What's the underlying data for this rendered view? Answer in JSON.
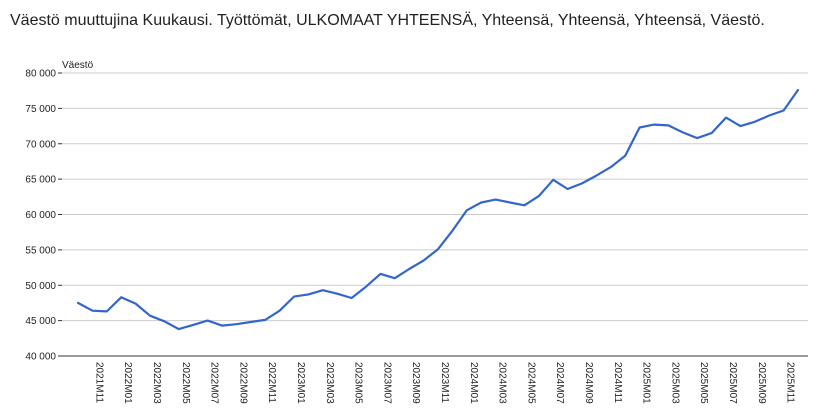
{
  "chart_data": {
    "type": "line",
    "title": "Väestö muuttujina Kuukausi. Työttömät, ULKOMAAT YHTEENSÄ, Yhteensä, Yhteensä, Yhteensä, Väestö.",
    "ylabel": "Väestö",
    "xlabel": "",
    "ylim": [
      40000,
      80000
    ],
    "y_ticks": [
      40000,
      45000,
      50000,
      55000,
      60000,
      65000,
      70000,
      75000,
      80000
    ],
    "y_tick_labels": [
      "40 000",
      "45 000",
      "50 000",
      "55 000",
      "60 000",
      "65 000",
      "70 000",
      "75 000",
      "80 000"
    ],
    "x_tick_labels": [
      "2021M11",
      "2022M01",
      "2022M03",
      "2022M05",
      "2022M07",
      "2022M09",
      "2022M11",
      "2023M01",
      "2023M03",
      "2023M05",
      "2023M07",
      "2023M09",
      "2023M11",
      "2024M01",
      "2024M03",
      "2024M05",
      "2024M07",
      "2024M09",
      "2024M11",
      "2025M01",
      "2025M03",
      "2025M05",
      "2025M07",
      "2025M09",
      "2025M11"
    ],
    "grid": true,
    "legend": "none",
    "line_color": "#3366cc",
    "categories": [
      "2021M10",
      "2021M11",
      "2021M12",
      "2022M01",
      "2022M02",
      "2022M03",
      "2022M04",
      "2022M05",
      "2022M06",
      "2022M07",
      "2022M08",
      "2022M09",
      "2022M10",
      "2022M11",
      "2022M12",
      "2023M01",
      "2023M02",
      "2023M03",
      "2023M04",
      "2023M05",
      "2023M06",
      "2023M07",
      "2023M08",
      "2023M09",
      "2023M10",
      "2023M11",
      "2023M12",
      "2024M01",
      "2024M02",
      "2024M03",
      "2024M04",
      "2024M05",
      "2024M06",
      "2024M07",
      "2024M08",
      "2024M09",
      "2024M10",
      "2024M11",
      "2024M12",
      "2025M01",
      "2025M02",
      "2025M03",
      "2025M04",
      "2025M05",
      "2025M06",
      "2025M07",
      "2025M08",
      "2025M09",
      "2025M10",
      "2025M11",
      "2025M12"
    ],
    "series": [
      {
        "values": [
          47500,
          46400,
          46300,
          48300,
          47400,
          45700,
          44900,
          43800,
          44400,
          45000,
          44300,
          44500,
          44800,
          45100,
          46400,
          48400,
          48700,
          49300,
          48800,
          48200,
          49800,
          51600,
          51000,
          52300,
          53500,
          55100,
          57700,
          60600,
          61700,
          62100,
          61700,
          61300,
          62600,
          64900,
          63600,
          64400,
          65500,
          66700,
          68300,
          72300,
          72700,
          72600,
          71600,
          70800,
          71500,
          73700,
          72500,
          73100,
          74000,
          74700,
          77600
        ]
      }
    ]
  }
}
